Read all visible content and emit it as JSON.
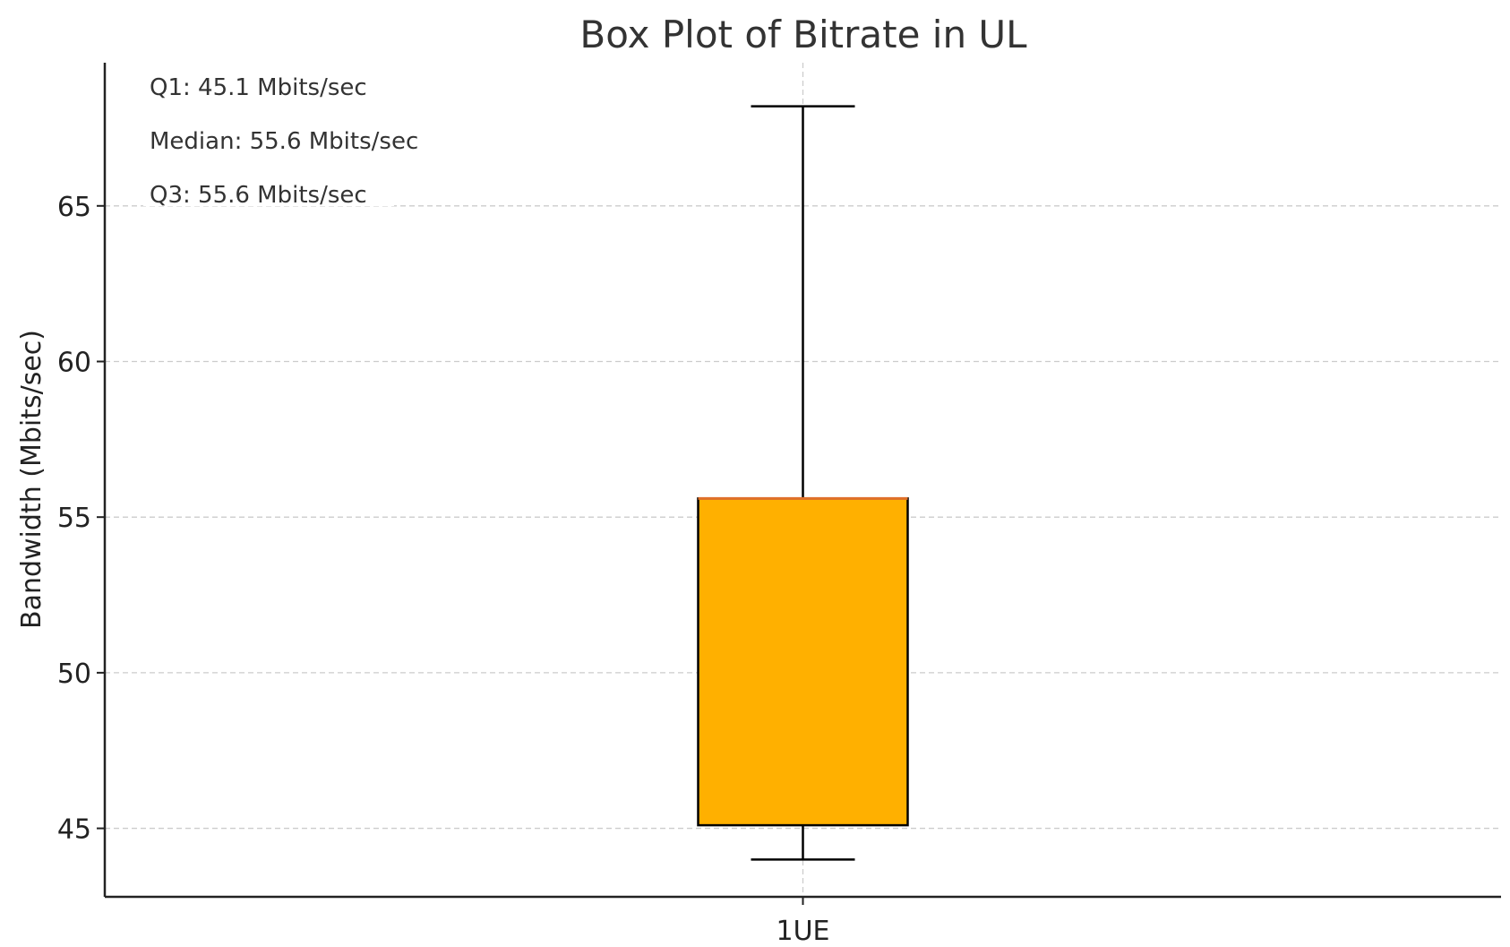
{
  "chart_data": {
    "type": "box",
    "title": "Box Plot of Bitrate in UL",
    "xlabel": "",
    "ylabel": "Bandwidth (Mbits/sec)",
    "categories": [
      "1UE"
    ],
    "boxes": [
      {
        "category": "1UE",
        "whisker_low": 44.0,
        "q1": 45.1,
        "median": 55.6,
        "q3": 55.6,
        "whisker_high": 68.2
      }
    ],
    "ylim": [
      42.8,
      69.6
    ],
    "yticks": [
      45,
      50,
      55,
      60,
      65
    ],
    "annotations": [
      "Q1: 45.1 Mbits/sec",
      "Median: 55.6 Mbits/sec",
      "Q3: 55.6 Mbits/sec"
    ],
    "grid": true,
    "colors": {
      "box_fill": "#FFB000",
      "median_line": "#E0702A",
      "edge": "#000000",
      "grid": "#CCCCCC"
    }
  }
}
